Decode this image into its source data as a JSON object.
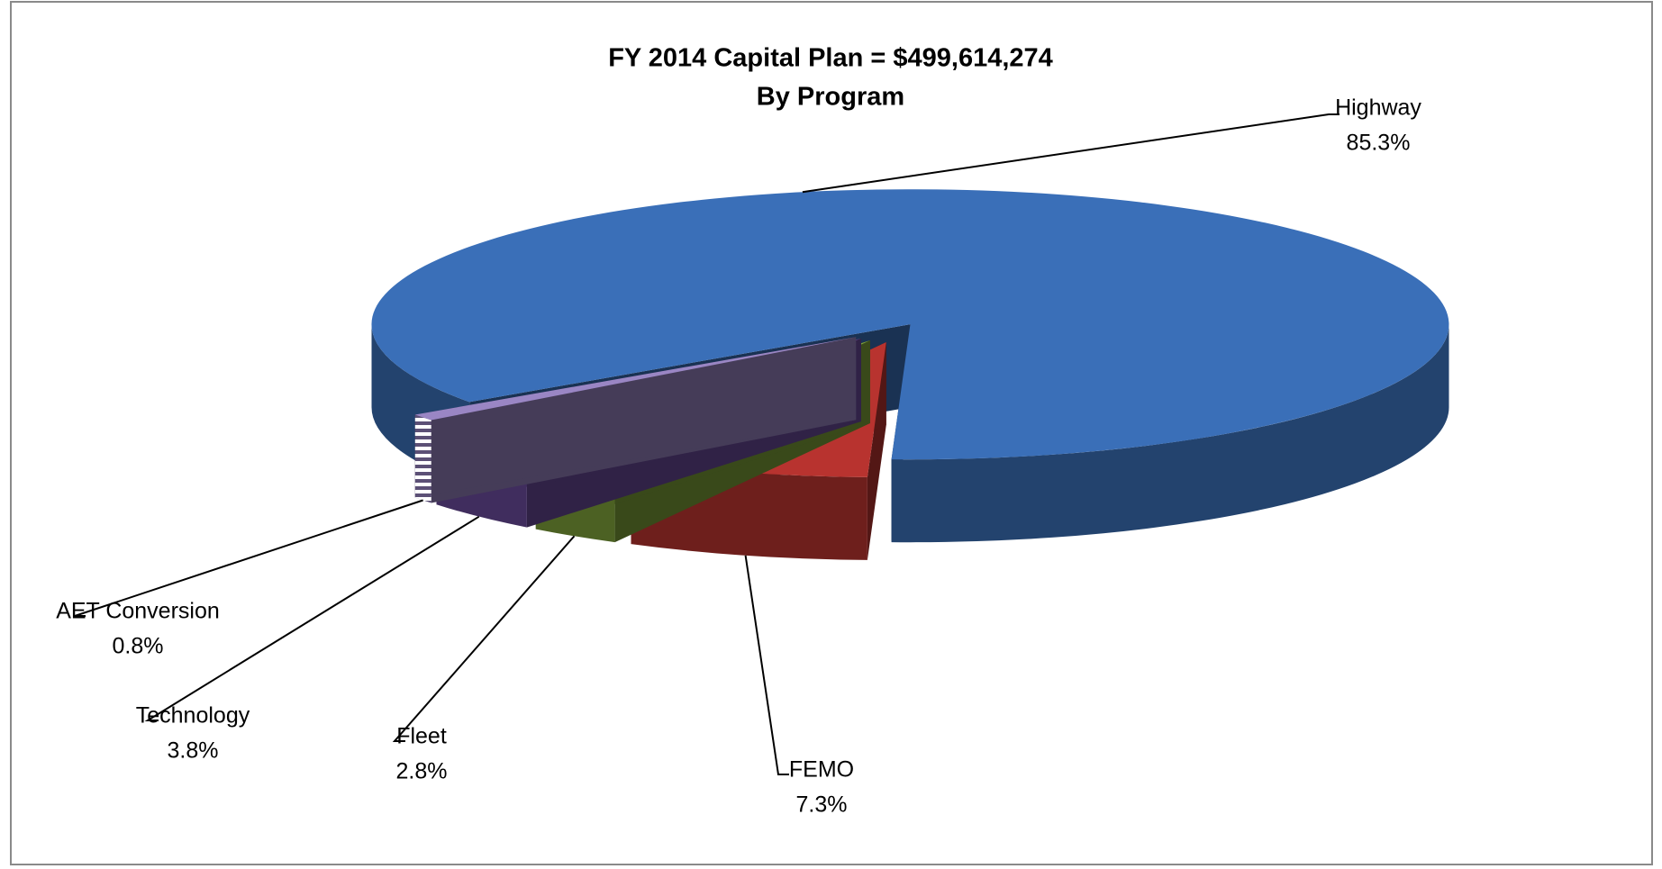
{
  "chart_data": {
    "type": "pie3d",
    "title": "FY 2014 Capital Plan = $499,614,274",
    "subtitle": "By Program",
    "categories": [
      "Highway",
      "FEMO",
      "Fleet",
      "Technology",
      "AET Conversion"
    ],
    "values": [
      85.3,
      7.3,
      2.8,
      3.8,
      0.8
    ],
    "value_labels": [
      "85.3%",
      "7.3%",
      "2.8%",
      "3.8%",
      "0.8%"
    ],
    "colors": [
      "#3a6fb8",
      "#b8332f",
      "#7ea23a",
      "#6b4b9c",
      "#9a86c4"
    ]
  }
}
